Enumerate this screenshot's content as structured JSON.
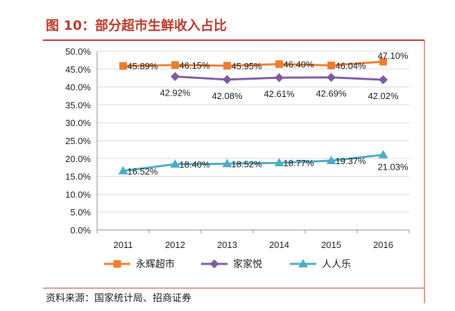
{
  "title": "图 10：部分超市生鲜收入占比",
  "source": "资料来源：国家统计局、招商证券",
  "colors": {
    "title": "#b8392a",
    "rule": "#b8392a",
    "axis": "#8c8c8c",
    "grid": "#d9d9d9"
  },
  "chart_data": {
    "type": "line",
    "title": "部分超市生鲜收入占比",
    "categories": [
      "2011",
      "2012",
      "2013",
      "2014",
      "2015",
      "2016"
    ],
    "ylim": [
      0,
      50
    ],
    "yticks": [
      0,
      5,
      10,
      15,
      20,
      25,
      30,
      35,
      40,
      45,
      50
    ],
    "ytick_labels": [
      "0.0%",
      "5.0%",
      "10.0%",
      "15.0%",
      "20.0%",
      "25.0%",
      "30.0%",
      "35.0%",
      "40.0%",
      "45.0%",
      "50.0%"
    ],
    "grid": true,
    "legend": "bottom",
    "series": [
      {
        "name": "永辉超市",
        "color": "#ed7d31",
        "marker": "square",
        "label_position": "right",
        "values": [
          45.89,
          46.15,
          45.95,
          46.4,
          46.04,
          47.1
        ],
        "labels": [
          "45.89%",
          "46.15%",
          "45.95%",
          "46.40%",
          "46.04%",
          "47.10%"
        ]
      },
      {
        "name": "家家悦",
        "color": "#7d5ba6",
        "marker": "diamond",
        "label_position": "below",
        "values": [
          null,
          42.92,
          42.08,
          42.61,
          42.69,
          42.02
        ],
        "labels": [
          null,
          "42.92%",
          "42.08%",
          "42.61%",
          "42.69%",
          "42.02%"
        ]
      },
      {
        "name": "人人乐",
        "color": "#4bacc6",
        "marker": "triangle",
        "label_position": "right",
        "values": [
          16.52,
          18.4,
          18.52,
          18.77,
          19.37,
          21.03
        ],
        "labels": [
          "16.52%",
          "18.40%",
          "18.52%",
          "18.77%",
          "19.37%",
          "21.03%"
        ]
      }
    ]
  }
}
